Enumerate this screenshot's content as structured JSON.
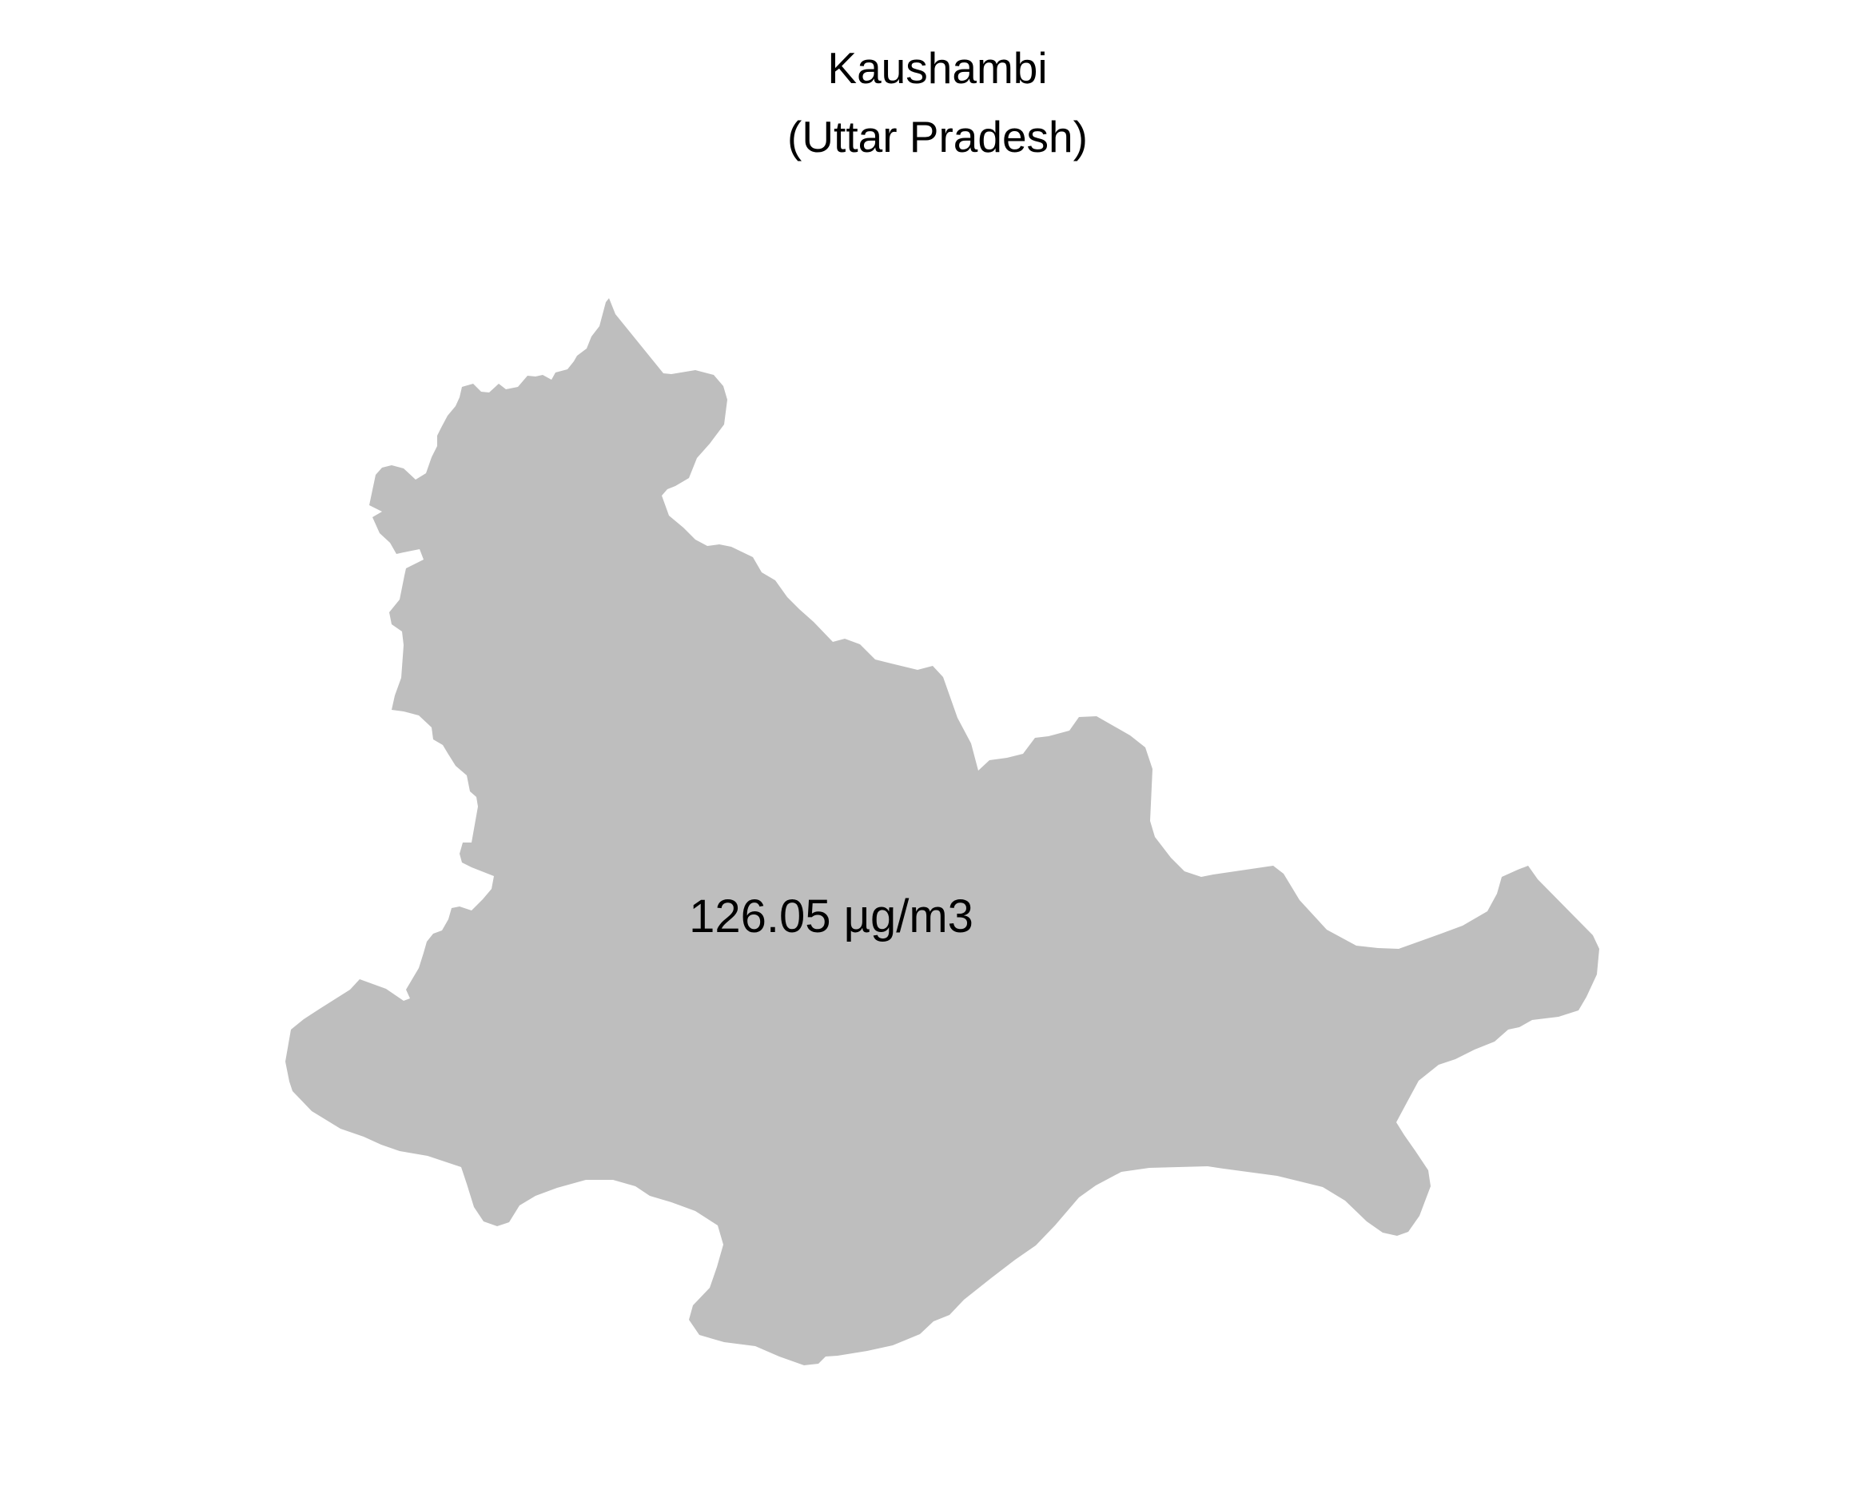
{
  "map": {
    "title": "Kaushambi",
    "subtitle": "(Uttar Pradesh)",
    "value_label": "126.05 µg/m3",
    "region_fill": "#bebebe",
    "background": "#ffffff"
  }
}
